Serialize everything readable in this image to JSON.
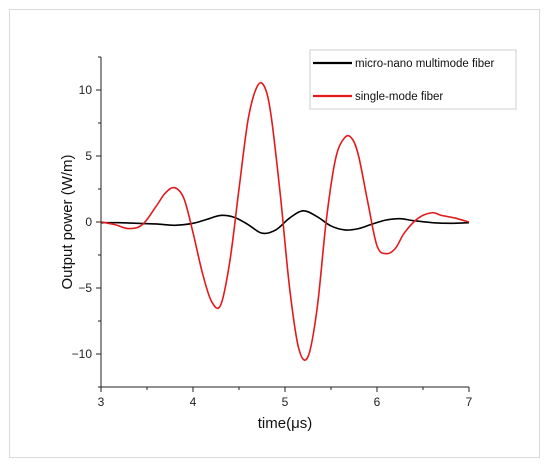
{
  "chart_data": {
    "type": "line",
    "title": "",
    "xlabel": "time(μs)",
    "ylabel": "Output power (W/m)",
    "xlim": [
      3,
      7
    ],
    "ylim": [
      -12.5,
      12.5
    ],
    "xticks": [
      "3",
      "4",
      "5",
      "6",
      "7"
    ],
    "yticks": [
      "10",
      "5",
      "0",
      "−5",
      "−10"
    ],
    "grid": false,
    "legend_position": "top-right",
    "series": [
      {
        "name": "micro-nano multimode fiber",
        "color": "#000000",
        "x": [
          3.0,
          3.2,
          3.4,
          3.6,
          3.8,
          4.0,
          4.15,
          4.3,
          4.45,
          4.6,
          4.75,
          4.9,
          5.05,
          5.2,
          5.35,
          5.5,
          5.65,
          5.8,
          5.95,
          6.1,
          6.25,
          6.4,
          6.6,
          6.8,
          7.0
        ],
        "y": [
          -0.05,
          -0.05,
          -0.1,
          -0.15,
          -0.25,
          -0.1,
          0.2,
          0.5,
          0.35,
          -0.2,
          -0.85,
          -0.6,
          0.3,
          0.85,
          0.4,
          -0.3,
          -0.6,
          -0.5,
          -0.15,
          0.15,
          0.25,
          0.1,
          -0.05,
          -0.1,
          -0.05
        ]
      },
      {
        "name": "single-mode fiber",
        "color": "#e31a1c",
        "x": [
          3.0,
          3.15,
          3.3,
          3.45,
          3.6,
          3.7,
          3.8,
          3.9,
          4.0,
          4.1,
          4.2,
          4.3,
          4.4,
          4.5,
          4.6,
          4.7,
          4.78,
          4.85,
          4.95,
          5.05,
          5.15,
          5.25,
          5.35,
          5.45,
          5.55,
          5.65,
          5.73,
          5.8,
          5.9,
          6.0,
          6.1,
          6.2,
          6.3,
          6.45,
          6.6,
          6.7,
          6.85,
          7.0
        ],
        "y": [
          0.0,
          -0.2,
          -0.5,
          -0.2,
          1.2,
          2.2,
          2.6,
          1.8,
          -0.8,
          -3.8,
          -6.0,
          -6.3,
          -3.0,
          2.5,
          7.8,
          10.3,
          10.2,
          8.0,
          2.0,
          -5.0,
          -9.6,
          -10.2,
          -6.5,
          0.2,
          4.8,
          6.4,
          6.3,
          5.0,
          1.5,
          -1.8,
          -2.4,
          -2.0,
          -0.8,
          0.3,
          0.7,
          0.5,
          0.3,
          0.0
        ]
      }
    ]
  }
}
